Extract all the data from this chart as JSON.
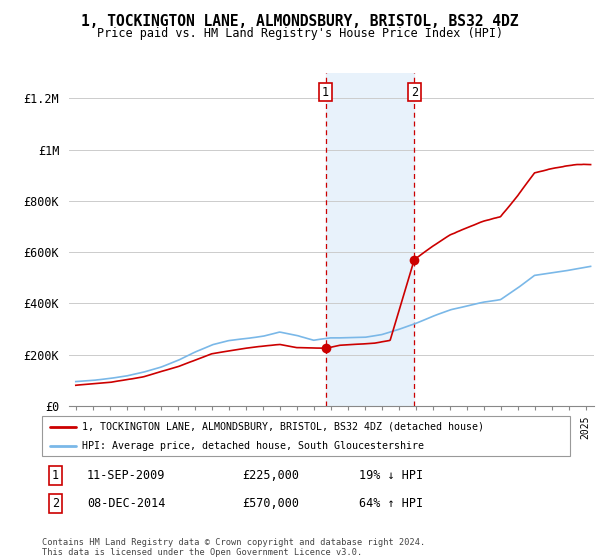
{
  "title": "1, TOCKINGTON LANE, ALMONDSBURY, BRISTOL, BS32 4DZ",
  "subtitle": "Price paid vs. HM Land Registry's House Price Index (HPI)",
  "ylim": [
    0,
    1300000
  ],
  "yticks": [
    0,
    200000,
    400000,
    600000,
    800000,
    1000000,
    1200000
  ],
  "ytick_labels": [
    "£0",
    "£200K",
    "£400K",
    "£600K",
    "£800K",
    "£1M",
    "£1.2M"
  ],
  "sale1_year": 2009.7,
  "sale1_price": 225000,
  "sale2_year": 2014.92,
  "sale2_price": 570000,
  "hpi_color": "#7ab8e8",
  "sale_color": "#cc0000",
  "shaded_color": "#e8f2fb",
  "vline_color": "#cc0000",
  "legend_label1": "1, TOCKINGTON LANE, ALMONDSBURY, BRISTOL, BS32 4DZ (detached house)",
  "legend_label2": "HPI: Average price, detached house, South Gloucestershire",
  "footer": "Contains HM Land Registry data © Crown copyright and database right 2024.\nThis data is licensed under the Open Government Licence v3.0."
}
